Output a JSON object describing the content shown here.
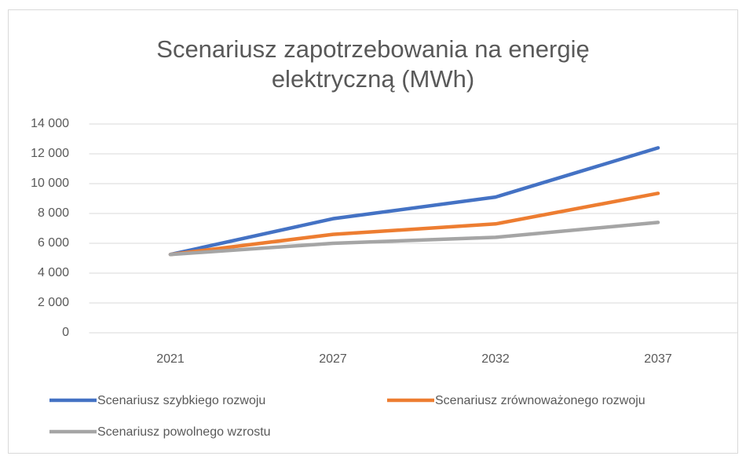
{
  "chart_data": {
    "type": "line",
    "title": "Scenariusz zapotrzebowania na energię elektryczną (MWh)",
    "categories": [
      "2021",
      "2027",
      "2032",
      "2037"
    ],
    "series": [
      {
        "name": "Scenariusz szybkiego rozwoju",
        "color": "#4472c4",
        "values": [
          5250,
          7650,
          9100,
          12400
        ]
      },
      {
        "name": "Scenariusz zrównoważonego rozwoju",
        "color": "#ed7d31",
        "values": [
          5250,
          6600,
          7300,
          9350
        ]
      },
      {
        "name": "Scenariusz powolnego wzrostu",
        "color": "#a5a5a5",
        "values": [
          5250,
          6000,
          6400,
          7400
        ]
      }
    ],
    "ylim": [
      0,
      14000
    ],
    "yticks": [
      0,
      {
        "value": 2000,
        "label": "2 000"
      },
      {
        "value": 4000,
        "label": "4 000"
      },
      {
        "value": 6000,
        "label": "6 000"
      },
      {
        "value": 8000,
        "label": "8 000"
      },
      {
        "value": 10000,
        "label": "10 000"
      },
      {
        "value": 12000,
        "label": "12 000"
      },
      {
        "value": 14000,
        "label": "14 000"
      }
    ],
    "grid": true,
    "legend": "bottom"
  }
}
